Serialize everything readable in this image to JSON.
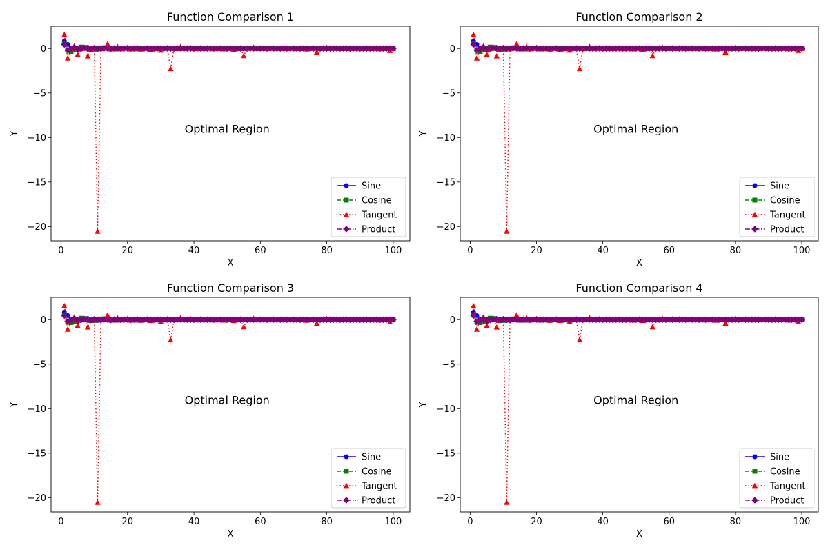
{
  "chart_data": [
    {
      "type": "line",
      "title": "Function Comparison 1",
      "xlabel": "X",
      "ylabel": "Y",
      "xlim": [
        -3,
        105
      ],
      "ylim": [
        -21.6,
        2.5
      ],
      "xticks": [
        0,
        20,
        40,
        60,
        80,
        100
      ],
      "yticks": [
        0,
        -5,
        -10,
        -15,
        -20
      ],
      "annotation": {
        "text": "Optimal Region",
        "x": 50,
        "y": -9
      },
      "legend": "lower-right",
      "series": [
        {
          "name": "Sine",
          "color": "#0000ff",
          "line": "solid",
          "marker": "circle",
          "func": "sin"
        },
        {
          "name": "Cosine",
          "color": "#008000",
          "line": "dashed",
          "marker": "square",
          "func": "cos"
        },
        {
          "name": "Tangent",
          "color": "#ff0000",
          "line": "dotted",
          "marker": "triangle",
          "func": "tan"
        },
        {
          "name": "Product",
          "color": "#800080",
          "line": "dashdot",
          "marker": "diamond",
          "func": "sin*cos"
        }
      ]
    },
    {
      "type": "line",
      "title": "Function Comparison 2",
      "xlabel": "X",
      "ylabel": "Y",
      "xlim": [
        -3,
        105
      ],
      "ylim": [
        -21.6,
        2.5
      ],
      "xticks": [
        0,
        20,
        40,
        60,
        80,
        100
      ],
      "yticks": [
        0,
        -5,
        -10,
        -15,
        -20
      ],
      "annotation": {
        "text": "Optimal Region",
        "x": 50,
        "y": -9
      },
      "legend": "lower-right",
      "series": [
        {
          "name": "Sine",
          "color": "#0000ff",
          "line": "solid",
          "marker": "circle",
          "func": "sin"
        },
        {
          "name": "Cosine",
          "color": "#008000",
          "line": "dashed",
          "marker": "square",
          "func": "cos"
        },
        {
          "name": "Tangent",
          "color": "#ff0000",
          "line": "dotted",
          "marker": "triangle",
          "func": "tan"
        },
        {
          "name": "Product",
          "color": "#800080",
          "line": "dashdot",
          "marker": "diamond",
          "func": "sin*cos"
        }
      ]
    },
    {
      "type": "line",
      "title": "Function Comparison 3",
      "xlabel": "X",
      "ylabel": "Y",
      "xlim": [
        -3,
        105
      ],
      "ylim": [
        -21.6,
        2.5
      ],
      "xticks": [
        0,
        20,
        40,
        60,
        80,
        100
      ],
      "yticks": [
        0,
        -5,
        -10,
        -15,
        -20
      ],
      "annotation": {
        "text": "Optimal Region",
        "x": 50,
        "y": -9
      },
      "legend": "lower-right",
      "series": [
        {
          "name": "Sine",
          "color": "#0000ff",
          "line": "solid",
          "marker": "circle",
          "func": "sin"
        },
        {
          "name": "Cosine",
          "color": "#008000",
          "line": "dashed",
          "marker": "square",
          "func": "cos"
        },
        {
          "name": "Tangent",
          "color": "#ff0000",
          "line": "dotted",
          "marker": "triangle",
          "func": "tan"
        },
        {
          "name": "Product",
          "color": "#800080",
          "line": "dashdot",
          "marker": "diamond",
          "func": "sin*cos"
        }
      ]
    },
    {
      "type": "line",
      "title": "Function Comparison 4",
      "xlabel": "X",
      "ylabel": "Y",
      "xlim": [
        -3,
        105
      ],
      "ylim": [
        -21.6,
        2.5
      ],
      "xticks": [
        0,
        20,
        40,
        60,
        80,
        100
      ],
      "yticks": [
        0,
        -5,
        -10,
        -15,
        -20
      ],
      "annotation": {
        "text": "Optimal Region",
        "x": 50,
        "y": -9
      },
      "legend": "lower-right",
      "series": [
        {
          "name": "Sine",
          "color": "#0000ff",
          "line": "solid",
          "marker": "circle",
          "func": "sin"
        },
        {
          "name": "Cosine",
          "color": "#008000",
          "line": "dashed",
          "marker": "square",
          "func": "cos"
        },
        {
          "name": "Tangent",
          "color": "#ff0000",
          "line": "dotted",
          "marker": "triangle",
          "func": "tan"
        },
        {
          "name": "Product",
          "color": "#800080",
          "line": "dashdot",
          "marker": "diamond",
          "func": "sin*cos"
        }
      ]
    }
  ]
}
